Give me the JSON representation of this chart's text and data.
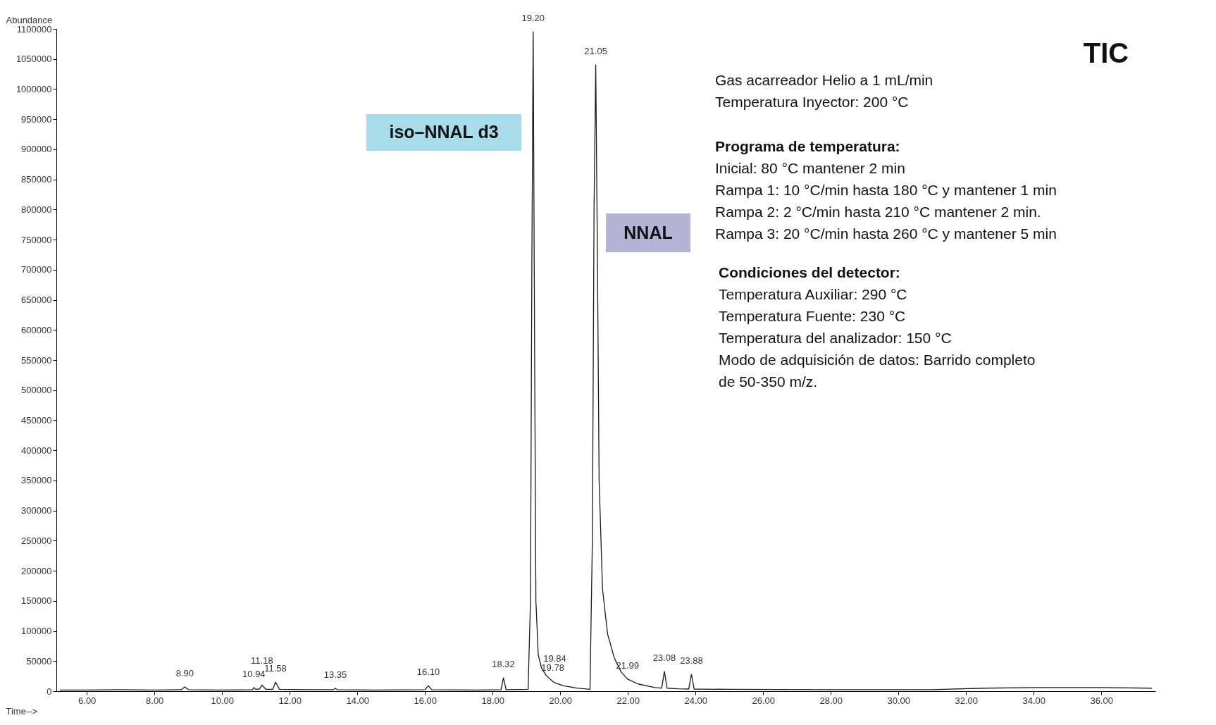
{
  "chart_data": {
    "type": "line",
    "title": "TIC",
    "xlabel": "Time-->",
    "ylabel": "Abundance",
    "x": [
      5.2,
      6.0,
      7.0,
      8.0,
      8.8,
      8.9,
      9.0,
      10.0,
      10.9,
      10.94,
      11.0,
      11.1,
      11.18,
      11.3,
      11.5,
      11.58,
      11.7,
      12.5,
      13.3,
      13.35,
      13.4,
      14.5,
      16.0,
      16.1,
      16.2,
      17.5,
      18.25,
      18.32,
      18.4,
      19.05,
      19.12,
      19.16,
      19.2,
      19.24,
      19.28,
      19.35,
      19.45,
      19.6,
      19.78,
      19.84,
      20.1,
      20.5,
      20.88,
      20.95,
      21.0,
      21.05,
      21.1,
      21.15,
      21.25,
      21.4,
      21.6,
      21.8,
      21.99,
      22.3,
      22.8,
      23.0,
      23.08,
      23.16,
      23.5,
      23.8,
      23.88,
      23.96,
      25,
      28,
      31,
      32.5,
      34,
      36,
      37.5
    ],
    "series": [
      {
        "color": "#1a1a1a",
        "values": [
          2000,
          2000,
          2500,
          2000,
          2500,
          7000,
          2500,
          2000,
          2500,
          6000,
          3000,
          3500,
          10000,
          3000,
          3000,
          15000,
          3000,
          2500,
          2500,
          5000,
          2500,
          2000,
          2500,
          9000,
          2500,
          2000,
          2500,
          22000,
          2500,
          3000,
          150000,
          700000,
          1095000,
          600000,
          150000,
          60000,
          38000,
          25000,
          16000,
          14000,
          9000,
          5000,
          3000,
          250000,
          800000,
          1040000,
          720000,
          350000,
          170000,
          95000,
          55000,
          32000,
          20000,
          12000,
          6000,
          5000,
          33000,
          5000,
          4000,
          3500,
          28000,
          3500,
          3000,
          2500,
          2500,
          5000,
          6000,
          6000,
          5000
        ]
      }
    ],
    "xlim": [
      5.1,
      37.6
    ],
    "xticks": [
      {
        "value": 6,
        "label": "6.00"
      },
      {
        "value": 8,
        "label": "8.00"
      },
      {
        "value": 10,
        "label": "10.00"
      },
      {
        "value": 12,
        "label": "12.00"
      },
      {
        "value": 14,
        "label": "14.00"
      },
      {
        "value": 16,
        "label": "16.00"
      },
      {
        "value": 18,
        "label": "18.00"
      },
      {
        "value": 20,
        "label": "20.00"
      },
      {
        "value": 22,
        "label": "22.00"
      },
      {
        "value": 24,
        "label": "24.00"
      },
      {
        "value": 26,
        "label": "26.00"
      },
      {
        "value": 28,
        "label": "28.00"
      },
      {
        "value": 30,
        "label": "30.00"
      },
      {
        "value": 32,
        "label": "32.00"
      },
      {
        "value": 34,
        "label": "34.00"
      },
      {
        "value": 36,
        "label": "36.00"
      }
    ],
    "ylim": [
      0,
      1100000
    ],
    "yticks": [
      0,
      50000,
      100000,
      150000,
      200000,
      250000,
      300000,
      350000,
      400000,
      450000,
      500000,
      550000,
      600000,
      650000,
      700000,
      750000,
      800000,
      850000,
      900000,
      950000,
      1000000,
      1050000,
      1100000
    ],
    "grid": false,
    "annotations": [
      {
        "text": "8.90",
        "x": 8.9,
        "y": 7000
      },
      {
        "text": "10.94",
        "x": 10.94,
        "y": 6000
      },
      {
        "text": "11.18",
        "x": 11.18,
        "y": 10000
      },
      {
        "text": "11.58",
        "x": 11.58,
        "y": 15000
      },
      {
        "text": "13.35",
        "x": 13.35,
        "y": 5000
      },
      {
        "text": "16.10",
        "x": 16.1,
        "y": 9000
      },
      {
        "text": "18.32",
        "x": 18.32,
        "y": 22000
      },
      {
        "text": "19.20",
        "x": 19.2,
        "y": 1095000
      },
      {
        "text": "19.78",
        "x": 19.78,
        "y": 16000
      },
      {
        "text": "19.84",
        "x": 19.84,
        "y": 14000
      },
      {
        "text": "21.05",
        "x": 21.05,
        "y": 1040000
      },
      {
        "text": "21.99",
        "x": 21.99,
        "y": 20000
      },
      {
        "text": "23.08",
        "x": 23.08,
        "y": 33000
      },
      {
        "text": "23.88",
        "x": 23.88,
        "y": 28000
      },
      "iso–NNAL d3",
      "NNAL",
      "Gas acarreador Helio  a 1 mL/min",
      "Temperatura Inyector: 200 °C",
      "Programa de temperatura:",
      "Inicial: 80 °C mantener 2 min",
      "Rampa 1: 10 °C/min hasta 180 °C y mantener 1 min",
      "Rampa 2: 2 °C/min hasta 210 °C mantener 2 min.",
      "Rampa 3: 20 °C/min hasta 260 °C y mantener 5 min",
      "Condiciones del detector:",
      "Temperatura  Auxiliar: 290 °C",
      "Temperatura  Fuente: 230 °C",
      "Temperatura  del analizador: 150 °C",
      "Modo de adquisición de datos: Barrido completo",
      "de 50-350 m/z."
    ]
  }
}
